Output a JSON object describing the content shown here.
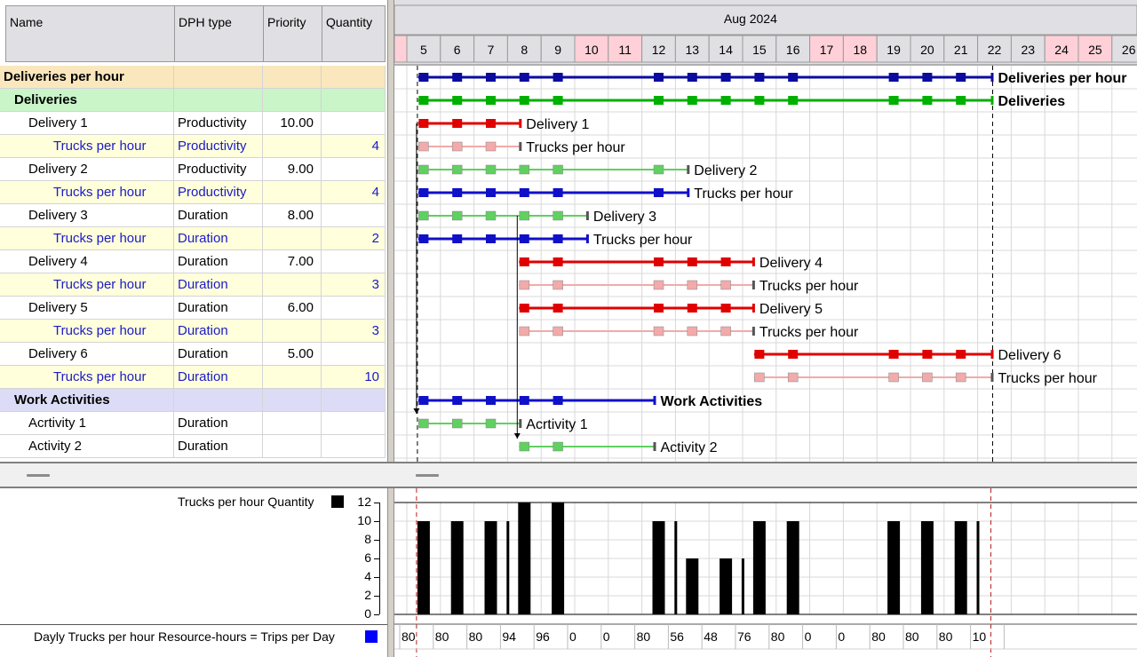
{
  "columns": {
    "name": "Name",
    "dph": "DPH type",
    "priority": "Priority",
    "quantity": "Quantity"
  },
  "timeline": {
    "month": "Aug 2024",
    "days": [
      {
        "d": "5"
      },
      {
        "d": "6"
      },
      {
        "d": "7"
      },
      {
        "d": "8"
      },
      {
        "d": "9"
      },
      {
        "d": "10",
        "w": true
      },
      {
        "d": "11",
        "w": true
      },
      {
        "d": "12"
      },
      {
        "d": "13"
      },
      {
        "d": "14"
      },
      {
        "d": "15"
      },
      {
        "d": "16"
      },
      {
        "d": "17",
        "w": true
      },
      {
        "d": "18",
        "w": true
      },
      {
        "d": "19"
      },
      {
        "d": "20"
      },
      {
        "d": "21"
      },
      {
        "d": "22"
      },
      {
        "d": "23"
      },
      {
        "d": "24",
        "w": true
      },
      {
        "d": "25",
        "w": true
      },
      {
        "d": "26"
      }
    ]
  },
  "rows": [
    {
      "name": "Deliveries per hour",
      "dph": "",
      "priority": "",
      "qty": "",
      "kind": "summary0",
      "indent": 0,
      "bar": {
        "start": 0,
        "end": 17,
        "color": "#0b0ba0",
        "label": "Deliveries per hour",
        "bold": true,
        "marks": [
          0,
          1,
          2,
          3,
          4,
          7,
          8,
          9,
          10,
          11,
          14,
          15,
          16
        ]
      }
    },
    {
      "name": "Deliveries",
      "dph": "",
      "priority": "",
      "qty": "",
      "kind": "summary1",
      "indent": 1,
      "bar": {
        "start": 0,
        "end": 17,
        "color": "#00b000",
        "label": "Deliveries",
        "bold": true,
        "marks": [
          0,
          1,
          2,
          3,
          4,
          7,
          8,
          9,
          10,
          11,
          14,
          15,
          16
        ]
      }
    },
    {
      "name": "Delivery 1",
      "dph": "Productivity",
      "priority": "10.00",
      "qty": "",
      "kind": "task",
      "indent": 2,
      "bar": {
        "start": 0,
        "end": 3,
        "color": "#e00000",
        "label": "Delivery 1",
        "marks": [
          0,
          1,
          2
        ]
      }
    },
    {
      "name": "Trucks per hour",
      "dph": "Productivity",
      "priority": "",
      "qty": "4",
      "kind": "res",
      "indent": 3,
      "bar": {
        "start": 0,
        "end": 3,
        "color": "#f2aaaa",
        "label": "Trucks per hour",
        "marks": [
          0,
          1,
          2
        ],
        "thin": true
      }
    },
    {
      "name": "Delivery 2",
      "dph": "Productivity",
      "priority": "9.00",
      "qty": "",
      "kind": "task",
      "indent": 2,
      "bar": {
        "start": 0,
        "end": 8,
        "color": "#60d060",
        "label": "Delivery 2",
        "marks": [
          0,
          1,
          2,
          3,
          4,
          7
        ],
        "thin": true
      }
    },
    {
      "name": "Trucks per hour",
      "dph": "Productivity",
      "priority": "",
      "qty": "4",
      "kind": "res",
      "indent": 3,
      "bar": {
        "start": 0,
        "end": 8,
        "color": "#1010c8",
        "label": "Trucks per hour",
        "marks": [
          0,
          1,
          2,
          3,
          4,
          7
        ]
      }
    },
    {
      "name": "Delivery 3",
      "dph": "Duration",
      "priority": "8.00",
      "qty": "",
      "kind": "task",
      "indent": 2,
      "bar": {
        "start": 0,
        "end": 5,
        "color": "#60d060",
        "label": "Delivery 3",
        "marks": [
          0,
          1,
          2,
          3,
          4
        ],
        "thin": true
      }
    },
    {
      "name": "Trucks per hour",
      "dph": "Duration",
      "priority": "",
      "qty": "2",
      "kind": "res",
      "indent": 3,
      "bar": {
        "start": 0,
        "end": 5,
        "color": "#1010c8",
        "label": "Trucks per hour",
        "marks": [
          0,
          1,
          2,
          3,
          4
        ]
      }
    },
    {
      "name": "Delivery 4",
      "dph": "Duration",
      "priority": "7.00",
      "qty": "",
      "kind": "task",
      "indent": 2,
      "bar": {
        "start": 3,
        "end": 10,
        "color": "#e00000",
        "label": "Delivery 4",
        "marks": [
          3,
          4,
          7,
          8,
          9
        ]
      }
    },
    {
      "name": "Trucks per hour",
      "dph": "Duration",
      "priority": "",
      "qty": "3",
      "kind": "res",
      "indent": 3,
      "bar": {
        "start": 3,
        "end": 10,
        "color": "#f2aaaa",
        "label": "Trucks per hour",
        "marks": [
          3,
          4,
          7,
          8,
          9
        ],
        "thin": true
      }
    },
    {
      "name": "Delivery 5",
      "dph": "Duration",
      "priority": "6.00",
      "qty": "",
      "kind": "task",
      "indent": 2,
      "bar": {
        "start": 3,
        "end": 10,
        "color": "#e00000",
        "label": "Delivery 5",
        "marks": [
          3,
          4,
          7,
          8,
          9
        ]
      }
    },
    {
      "name": "Trucks per hour",
      "dph": "Duration",
      "priority": "",
      "qty": "3",
      "kind": "res",
      "indent": 3,
      "bar": {
        "start": 3,
        "end": 10,
        "color": "#f2aaaa",
        "label": "Trucks per hour",
        "marks": [
          3,
          4,
          7,
          8,
          9
        ],
        "thin": true
      }
    },
    {
      "name": "Delivery 6",
      "dph": "Duration",
      "priority": "5.00",
      "qty": "",
      "kind": "task",
      "indent": 2,
      "bar": {
        "start": 10,
        "end": 17,
        "color": "#e00000",
        "label": "Delivery 6",
        "marks": [
          10,
          11,
          14,
          15,
          16
        ]
      }
    },
    {
      "name": "Trucks per hour",
      "dph": "Duration",
      "priority": "",
      "qty": "10",
      "kind": "res",
      "indent": 3,
      "bar": {
        "start": 10,
        "end": 17,
        "color": "#f2aaaa",
        "label": "Trucks per hour",
        "marks": [
          10,
          11,
          14,
          15,
          16
        ],
        "thin": true
      }
    },
    {
      "name": "Work Activities",
      "dph": "",
      "priority": "",
      "qty": "",
      "kind": "summary2",
      "indent": 1,
      "bar": {
        "start": 0,
        "end": 7,
        "color": "#1010c8",
        "label": "Work Activities",
        "bold": true,
        "marks": [
          0,
          1,
          2,
          3,
          4
        ]
      }
    },
    {
      "name": "Acrtivity 1",
      "dph": "Duration",
      "priority": "",
      "qty": "",
      "kind": "task",
      "indent": 2,
      "bar": {
        "start": 0,
        "end": 3,
        "color": "#60d060",
        "label": "Acrtivity 1",
        "marks": [
          0,
          1,
          2
        ],
        "thin": true
      }
    },
    {
      "name": "Activity 2",
      "dph": "Duration",
      "priority": "",
      "qty": "",
      "kind": "task",
      "indent": 2,
      "bar": {
        "start": 3,
        "end": 7,
        "color": "#60d060",
        "label": "Activity 2",
        "marks": [
          3,
          4
        ],
        "thin": true
      }
    }
  ],
  "histogram": {
    "label": "Trucks per hour Quantity",
    "legend_color": "#000000",
    "yticks": [
      "12",
      "10",
      "8",
      "6",
      "4",
      "2",
      "0"
    ],
    "bars": [
      {
        "v": 10
      },
      {
        "v": 10
      },
      {
        "v": 10
      },
      {
        "v": 12,
        "pre": 10
      },
      {
        "v": 12
      },
      {
        "v": 0
      },
      {
        "v": 0
      },
      {
        "v": 10
      },
      {
        "v": 6,
        "pre": 10
      },
      {
        "v": 6
      },
      {
        "v": 10,
        "pre": 6
      },
      {
        "v": 10
      },
      {
        "v": 0
      },
      {
        "v": 0
      },
      {
        "v": 10
      },
      {
        "v": 10
      },
      {
        "v": 10
      },
      {
        "v": 0,
        "pre": 10
      }
    ]
  },
  "footer": {
    "label": "Dayly Trucks per hour Resource-hours = Trips per Day",
    "legend_color": "#0000ff",
    "values": [
      "80",
      "80",
      "80",
      "94",
      "96",
      "0",
      "0",
      "80",
      "56",
      "48",
      "76",
      "80",
      "0",
      "0",
      "80",
      "80",
      "80",
      "10"
    ]
  }
}
